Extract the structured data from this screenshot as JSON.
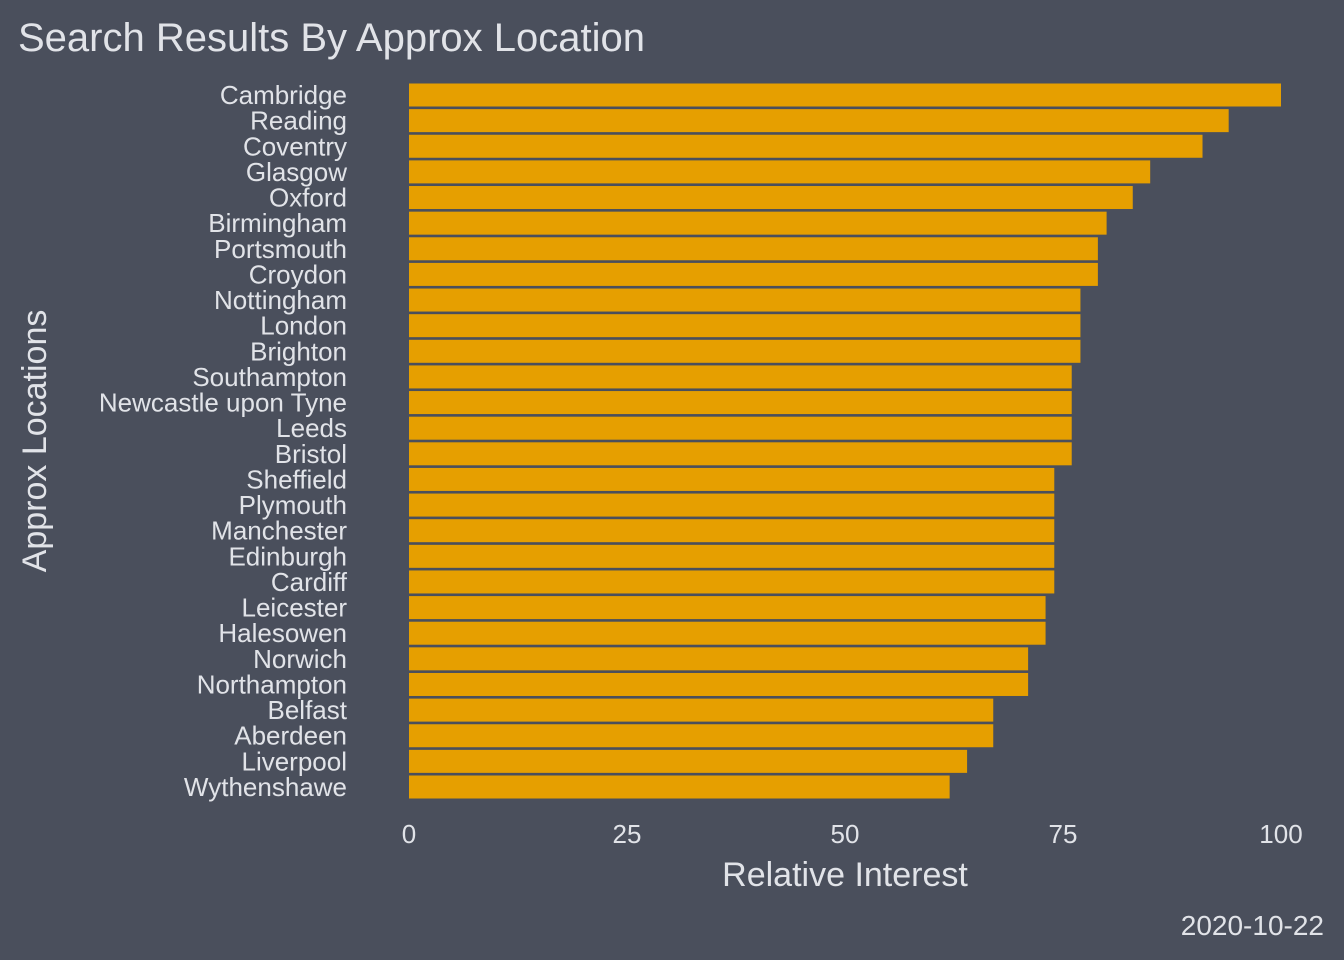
{
  "chart_data": {
    "type": "bar",
    "orientation": "horizontal",
    "title": "Search Results By Approx Location",
    "xlabel": "Relative Interest",
    "ylabel": "Approx Locations",
    "caption": "2020-10-22",
    "xlim": [
      0,
      100
    ],
    "xticks": [
      "0",
      "25",
      "50",
      "75",
      "100"
    ],
    "grid": false,
    "legend": "none",
    "bar_color": "#e69f00",
    "background_color": "#4a4f5c",
    "text_color": "#e1e3e8",
    "categories": [
      "Cambridge",
      "Reading",
      "Coventry",
      "Glasgow",
      "Oxford",
      "Birmingham",
      "Portsmouth",
      "Croydon",
      "Nottingham",
      "London",
      "Brighton",
      "Southampton",
      "Newcastle upon Tyne",
      "Leeds",
      "Bristol",
      "Sheffield",
      "Plymouth",
      "Manchester",
      "Edinburgh",
      "Cardiff",
      "Leicester",
      "Halesowen",
      "Norwich",
      "Northampton",
      "Belfast",
      "Aberdeen",
      "Liverpool",
      "Wythenshawe"
    ],
    "values": [
      100,
      94,
      91,
      85,
      83,
      80,
      79,
      79,
      77,
      77,
      77,
      76,
      76,
      76,
      76,
      74,
      74,
      74,
      74,
      74,
      73,
      73,
      71,
      71,
      67,
      67,
      64,
      62
    ]
  }
}
